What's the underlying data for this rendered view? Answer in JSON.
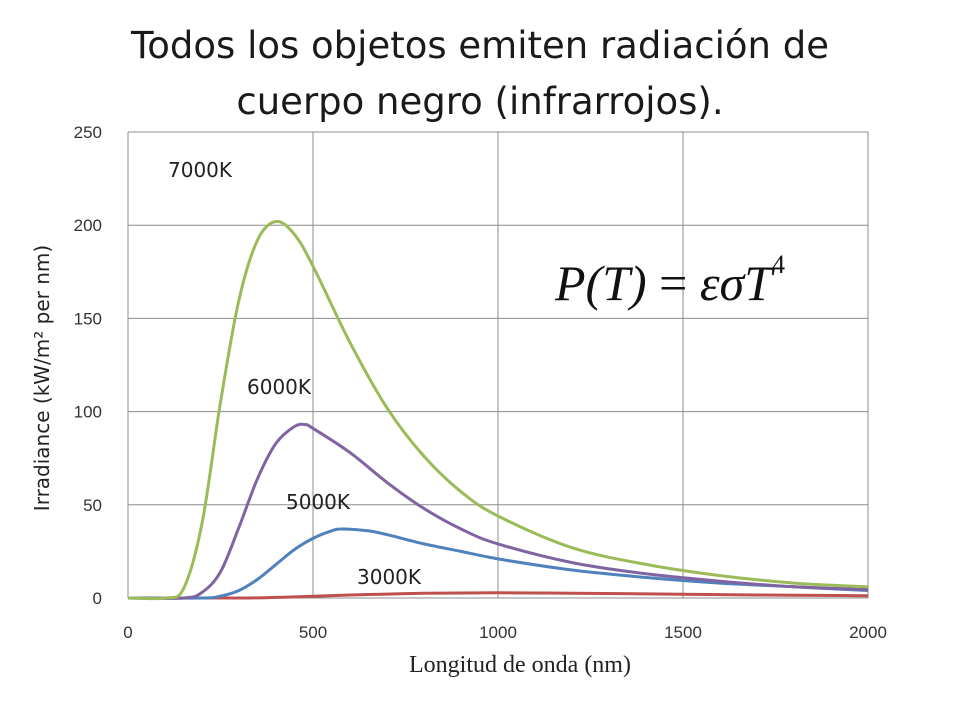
{
  "title": {
    "line1": "Todos los objetos emiten radiación de",
    "line2": "cuerpo negro (infrarrojos)."
  },
  "formula": {
    "lhs": "P(T)",
    "eq": " = ",
    "rhs": "εσT",
    "exp": "4"
  },
  "chart_data": {
    "type": "line",
    "xlabel": "Longitud de onda (nm)",
    "ylabel": "Irradiance (kW/m² per nm)",
    "xlim": [
      0,
      2000
    ],
    "ylim": [
      0,
      250
    ],
    "xticks": [
      0,
      500,
      1000,
      1500,
      2000
    ],
    "yticks": [
      0,
      50,
      100,
      150,
      200,
      250
    ],
    "grid": true,
    "series": [
      {
        "name": "7000K",
        "color": "#9bbb59",
        "x": [
          0,
          100,
          150,
          200,
          250,
          300,
          350,
          400,
          450,
          500,
          600,
          700,
          800,
          900,
          1000,
          1200,
          1400,
          1600,
          1800,
          2000
        ],
        "y": [
          0,
          0,
          5,
          40,
          105,
          160,
          192,
          202,
          195,
          178,
          137,
          102,
          76,
          57,
          44,
          27,
          18,
          12,
          8,
          6
        ]
      },
      {
        "name": "6000K",
        "color": "#8064a2",
        "x": [
          0,
          150,
          200,
          250,
          300,
          350,
          400,
          450,
          480,
          500,
          600,
          700,
          800,
          900,
          1000,
          1200,
          1400,
          1600,
          1800,
          2000
        ],
        "y": [
          0,
          0,
          3,
          14,
          38,
          64,
          83,
          92,
          93,
          91,
          78,
          62,
          48,
          37,
          29,
          19,
          13,
          9,
          6,
          4.5
        ]
      },
      {
        "name": "5000K",
        "color": "#4f81bd",
        "x": [
          0,
          200,
          250,
          300,
          350,
          400,
          450,
          500,
          550,
          580,
          650,
          700,
          800,
          900,
          1000,
          1200,
          1400,
          1600,
          1800,
          2000
        ],
        "y": [
          0,
          0,
          1,
          4,
          10,
          18,
          26,
          32,
          36,
          37,
          36,
          34,
          29,
          25,
          21,
          15,
          11,
          8,
          6,
          4
        ]
      },
      {
        "name": "3000K",
        "color": "#c0504d",
        "x": [
          0,
          300,
          400,
          500,
          600,
          700,
          800,
          900,
          1000,
          1100,
          1200,
          1400,
          1600,
          1800,
          2000
        ],
        "y": [
          0,
          0,
          0.3,
          0.9,
          1.6,
          2.1,
          2.5,
          2.7,
          2.8,
          2.7,
          2.6,
          2.2,
          1.8,
          1.5,
          1.2
        ]
      }
    ]
  }
}
